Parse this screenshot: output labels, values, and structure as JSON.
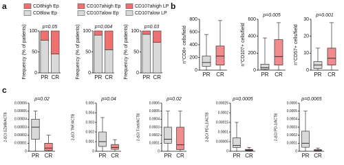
{
  "chart_data": [
    {
      "type": "stacked-bar",
      "panel": "a",
      "annotation": "p=0.05",
      "ylabel": "Frequency (% of patients)",
      "categories": [
        "PR",
        "CR"
      ],
      "series": [
        {
          "name": "CD8high Ep",
          "color": "#f07070",
          "values": [
            22,
            55
          ]
        },
        {
          "name": "CD8low Ep",
          "color": "#d9d9d9",
          "values": [
            78,
            45
          ]
        }
      ],
      "ylim": [
        0,
        100
      ],
      "yticks": [
        0,
        50,
        100
      ]
    },
    {
      "type": "stacked-bar",
      "annotation": "p=0.004",
      "ylabel": "Frequency (% of patients)",
      "categories": [
        "PR",
        "CR"
      ],
      "series": [
        {
          "name": "CD107ahigh Ep",
          "color": "#f07070",
          "values": [
            10,
            45
          ]
        },
        {
          "name": "CD107alow Ep",
          "color": "#d9d9d9",
          "values": [
            90,
            55
          ]
        }
      ],
      "ylim": [
        0,
        100
      ],
      "yticks": [
        0,
        50,
        100
      ]
    },
    {
      "type": "stacked-bar",
      "annotation": "p=0.03",
      "ylabel": "Frequency (% of patients)",
      "categories": [
        "PR",
        "CR"
      ],
      "series": [
        {
          "name": "CD107ahigh LP",
          "color": "#f07070",
          "values": [
            8,
            27
          ]
        },
        {
          "name": "CD107alow LP",
          "color": "#d9d9d9",
          "values": [
            92,
            73
          ]
        }
      ],
      "ylim": [
        0,
        100
      ],
      "yticks": [
        0,
        50,
        100
      ]
    },
    {
      "type": "box",
      "panel": "b",
      "ylabel": "n°CD8+ cells/field",
      "categories": [
        "PR",
        "CR"
      ],
      "colors": [
        "#d9d9d9",
        "#f28b8b"
      ],
      "boxes": [
        {
          "min": 0,
          "q1": 60,
          "median": 120,
          "q3": 220,
          "max": 560
        },
        {
          "min": 0,
          "q1": 80,
          "median": 220,
          "q3": 380,
          "max": 780
        }
      ],
      "ylim": [
        0,
        800
      ],
      "yticks": [
        0,
        200,
        400,
        600,
        800
      ]
    },
    {
      "type": "box",
      "annotation": "p=0.005",
      "ylabel": "n°CD107+ cells/field",
      "categories": [
        "PR",
        "CR"
      ],
      "colors": [
        "#d9d9d9",
        "#f28b8b"
      ],
      "boxes": [
        {
          "min": 0,
          "q1": 10,
          "median": 30,
          "q3": 70,
          "max": 380
        },
        {
          "min": 0,
          "q1": 60,
          "median": 160,
          "q3": 360,
          "max": 560
        }
      ],
      "ylim": [
        0,
        600
      ],
      "yticks": [
        0,
        200,
        400,
        600
      ]
    },
    {
      "type": "box",
      "annotation": "p=0.001",
      "ylabel": "n°CD57+ cells/field",
      "categories": [
        "PR",
        "CR"
      ],
      "colors": [
        "#d9d9d9",
        "#f28b8b"
      ],
      "boxes": [
        {
          "min": 0,
          "q1": 1,
          "median": 3,
          "q3": 5,
          "max": 13
        },
        {
          "min": 0,
          "q1": 3,
          "median": 7,
          "q3": 13,
          "max": 28
        }
      ],
      "ylim": [
        0,
        30
      ],
      "yticks": [
        0,
        10,
        20,
        30
      ]
    },
    {
      "type": "box",
      "panel": "c",
      "annotation": "p=0.02",
      "ylabel": "2-ΔCt GZMB/ACTB",
      "categories": [
        "PR",
        "CR"
      ],
      "colors": [
        "#d9d9d9",
        "#f28b8b"
      ],
      "boxes": [
        {
          "min": 0,
          "q1": 1.5e-05,
          "median": 3e-05,
          "q3": 4e-05,
          "max": 5e-05
        },
        {
          "min": 0,
          "q1": 1e-06,
          "median": 4e-06,
          "q3": 1e-05,
          "max": 2e-05
        }
      ],
      "ylim": [
        0,
        6e-05
      ],
      "yticks": [
        0,
        1e-05,
        2e-05,
        3e-05,
        4e-05,
        5e-05,
        6e-05
      ]
    },
    {
      "type": "box",
      "annotation": "p=0.04",
      "ylabel": "2-ΔCt TNF/ACTB",
      "categories": [
        "PR",
        "CR"
      ],
      "colors": [
        "#d9d9d9",
        "#f28b8b"
      ],
      "boxes": [
        {
          "min": 0,
          "q1": 0.0005,
          "median": 0.001,
          "q3": 0.002,
          "max": 0.0035
        },
        {
          "min": 0,
          "q1": 0.0002,
          "median": 0.0004,
          "q3": 0.0007,
          "max": 0.0012
        }
      ],
      "ylim": [
        0,
        0.005
      ],
      "yticks": [
        0,
        0.001,
        0.002,
        0.003,
        0.004,
        0.005
      ]
    },
    {
      "type": "box",
      "annotation": "p=0.02",
      "ylabel": "2-ΔCt T-bet/ACTB",
      "categories": [
        "PR",
        "CR"
      ],
      "colors": [
        "#d9d9d9",
        "#f28b8b"
      ],
      "boxes": [
        {
          "min": 0,
          "q1": 0.0001,
          "median": 0.00015,
          "q3": 0.0003,
          "max": 0.0005
        },
        {
          "min": 0,
          "q1": 2e-05,
          "median": 8e-05,
          "q3": 0.0003,
          "max": 0.0005
        }
      ],
      "ylim": [
        0,
        0.0006
      ],
      "yticks": [
        0,
        0.0001,
        0.0002,
        0.0003,
        0.0004,
        0.0005,
        0.0006
      ]
    },
    {
      "type": "box",
      "annotation": "p=0.0005",
      "ylabel": "2-ΔCt PD-L1/ACTB",
      "categories": [
        "PR",
        "CR"
      ],
      "colors": [
        "#d9d9d9",
        "#f28b8b"
      ],
      "boxes": [
        {
          "min": 0,
          "q1": 2e-05,
          "median": 3e-05,
          "q3": 7e-05,
          "max": 0.00015
        },
        {
          "min": 0,
          "q1": 3e-06,
          "median": 6e-06,
          "q3": 1e-05,
          "max": 2e-05
        }
      ],
      "ylim": [
        0,
        0.00025
      ],
      "yticks": [
        0,
        5e-05,
        0.0001,
        0.00015,
        0.0002,
        0.00025
      ]
    },
    {
      "type": "box",
      "annotation": "p=0.0065",
      "ylabel": "2-ΔCt PD-1/ACTB",
      "categories": [
        "PR",
        "CR"
      ],
      "colors": [
        "#d9d9d9",
        "#f28b8b"
      ],
      "boxes": [
        {
          "min": 0,
          "q1": 5e-05,
          "median": 0.0001,
          "q3": 0.00025,
          "max": 0.0005
        },
        {
          "min": 0,
          "q1": 5e-06,
          "median": 1e-05,
          "q3": 2e-05,
          "max": 4e-05
        }
      ],
      "ylim": [
        0,
        0.0006
      ],
      "yticks": [
        0,
        0.0001,
        0.0002,
        0.0003,
        0.0004,
        0.0005,
        0.0006
      ]
    }
  ]
}
